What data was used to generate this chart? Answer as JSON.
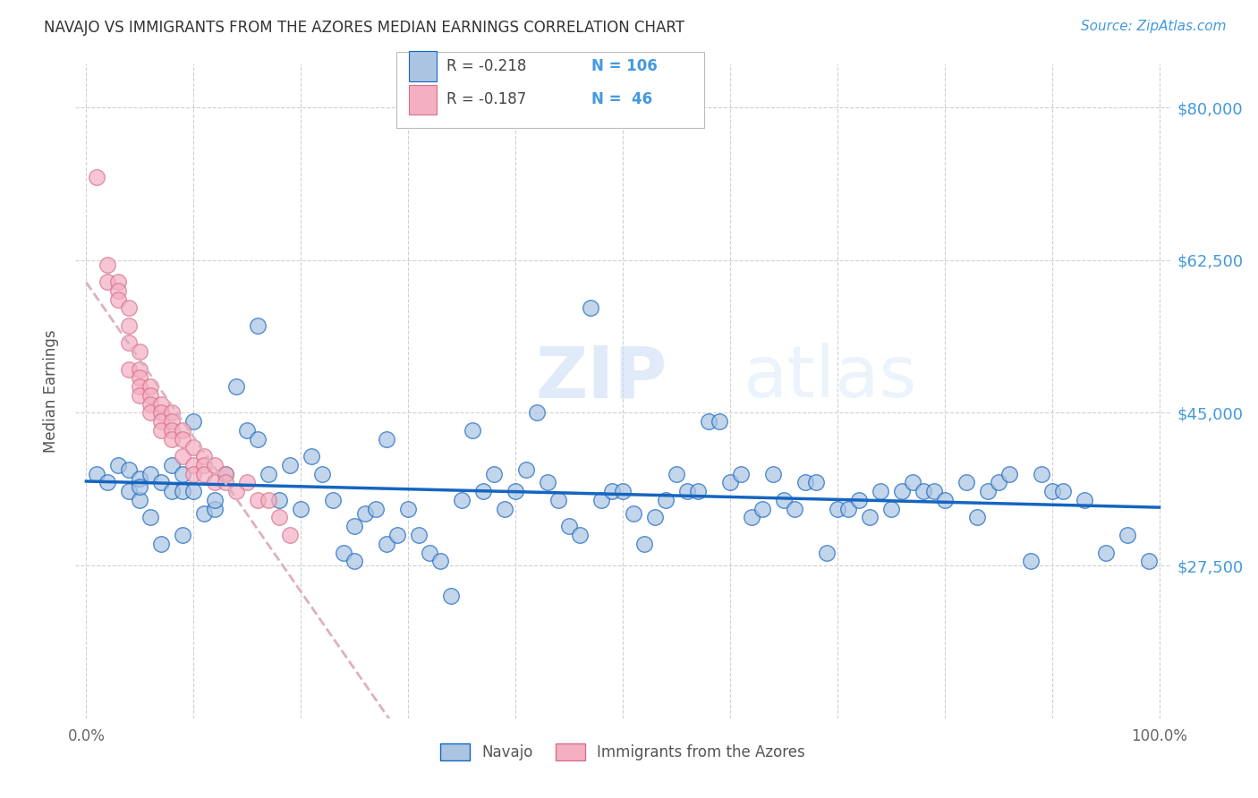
{
  "title": "NAVAJO VS IMMIGRANTS FROM THE AZORES MEDIAN EARNINGS CORRELATION CHART",
  "source": "Source: ZipAtlas.com",
  "ylabel": "Median Earnings",
  "xlim": [
    -1,
    101
  ],
  "ylim": [
    10000,
    85000
  ],
  "yticks": [
    27500,
    45000,
    62500,
    80000
  ],
  "xticks": [
    0,
    10,
    20,
    30,
    40,
    50,
    60,
    70,
    80,
    90,
    100
  ],
  "xtick_labels": [
    "0.0%",
    "",
    "",
    "",
    "",
    "",
    "",
    "",
    "",
    "",
    "100.0%"
  ],
  "navajo_color": "#aac4e2",
  "azores_color": "#f5afc2",
  "navajo_line_color": "#1565c0",
  "azores_line_color": "#e8b4c0",
  "label_color": "#4499dd",
  "navajo_R": "-0.218",
  "navajo_N": "106",
  "azores_R": "-0.187",
  "azores_N": "46",
  "navajo_legend": "Navajo",
  "azores_legend": "Immigrants from the Azores",
  "watermark_zip": "ZIP",
  "watermark_atlas": "atlas",
  "navajo_x": [
    1,
    2,
    3,
    4,
    4,
    5,
    5,
    5,
    6,
    6,
    7,
    7,
    8,
    8,
    9,
    9,
    9,
    10,
    10,
    11,
    12,
    12,
    13,
    14,
    15,
    16,
    16,
    17,
    18,
    19,
    20,
    21,
    22,
    23,
    24,
    25,
    25,
    26,
    27,
    28,
    28,
    29,
    30,
    31,
    32,
    33,
    34,
    35,
    36,
    37,
    38,
    39,
    40,
    41,
    42,
    43,
    44,
    45,
    46,
    47,
    48,
    49,
    50,
    51,
    52,
    53,
    54,
    55,
    56,
    57,
    58,
    59,
    60,
    61,
    62,
    63,
    64,
    65,
    66,
    67,
    68,
    69,
    70,
    71,
    72,
    73,
    74,
    75,
    76,
    77,
    78,
    79,
    80,
    82,
    83,
    84,
    85,
    86,
    88,
    89,
    90,
    91,
    93,
    95,
    97,
    99
  ],
  "navajo_y": [
    38000,
    37000,
    39000,
    36000,
    38500,
    35000,
    37500,
    36500,
    33000,
    38000,
    30000,
    37000,
    39000,
    36000,
    31000,
    36000,
    38000,
    44000,
    36000,
    33500,
    34000,
    35000,
    38000,
    48000,
    43000,
    42000,
    55000,
    38000,
    35000,
    39000,
    34000,
    40000,
    38000,
    35000,
    29000,
    28000,
    32000,
    33500,
    34000,
    30000,
    42000,
    31000,
    34000,
    31000,
    29000,
    28000,
    24000,
    35000,
    43000,
    36000,
    38000,
    34000,
    36000,
    38500,
    45000,
    37000,
    35000,
    32000,
    31000,
    57000,
    35000,
    36000,
    36000,
    33500,
    30000,
    33000,
    35000,
    38000,
    36000,
    36000,
    44000,
    44000,
    37000,
    38000,
    33000,
    34000,
    38000,
    35000,
    34000,
    37000,
    37000,
    29000,
    34000,
    34000,
    35000,
    33000,
    36000,
    34000,
    36000,
    37000,
    36000,
    36000,
    35000,
    37000,
    33000,
    36000,
    37000,
    38000,
    28000,
    38000,
    36000,
    36000,
    35000,
    29000,
    31000,
    28000
  ],
  "azores_x": [
    1,
    2,
    2,
    3,
    3,
    3,
    4,
    4,
    4,
    4,
    5,
    5,
    5,
    5,
    5,
    6,
    6,
    6,
    6,
    7,
    7,
    7,
    7,
    8,
    8,
    8,
    8,
    9,
    9,
    9,
    10,
    10,
    10,
    11,
    11,
    11,
    12,
    12,
    13,
    13,
    14,
    15,
    16,
    17,
    18,
    19
  ],
  "azores_y": [
    72000,
    62000,
    60000,
    60000,
    59000,
    58000,
    57000,
    55000,
    53000,
    50000,
    52000,
    50000,
    49000,
    48000,
    47000,
    48000,
    47000,
    46000,
    45000,
    46000,
    45000,
    44000,
    43000,
    45000,
    44000,
    43000,
    42000,
    43000,
    42000,
    40000,
    41000,
    39000,
    38000,
    40000,
    39000,
    38000,
    39000,
    37000,
    38000,
    37000,
    36000,
    37000,
    35000,
    35000,
    33000,
    31000
  ]
}
